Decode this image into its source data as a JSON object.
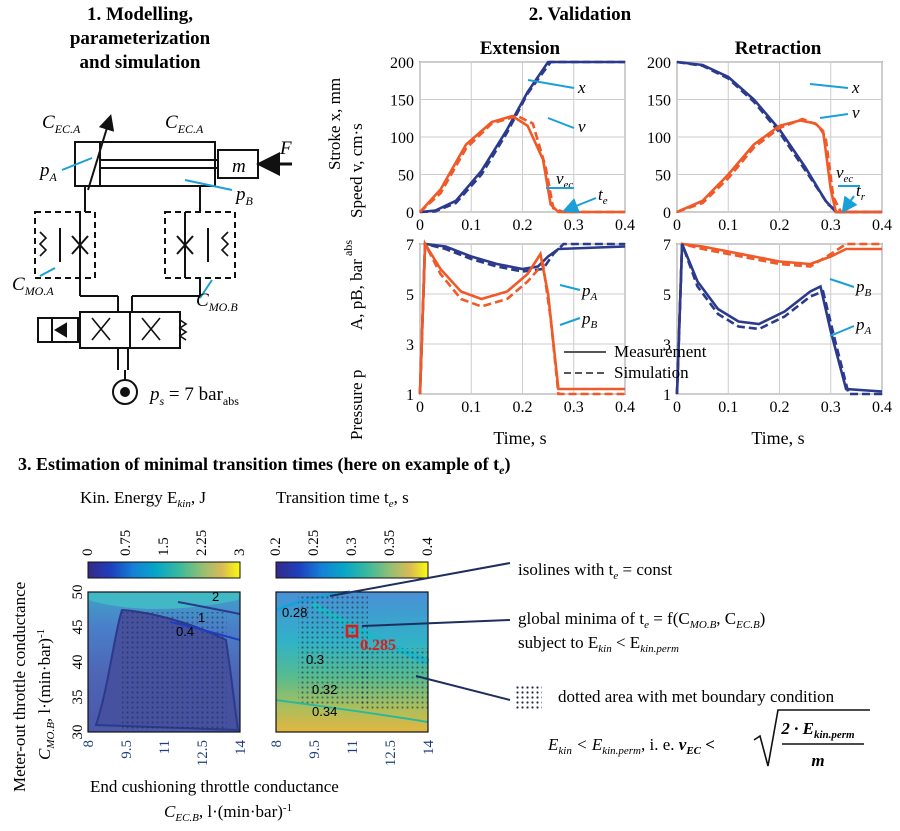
{
  "section1": {
    "title_line1": "1. Modelling,",
    "title_line2": "parameterization",
    "title_line3": "and simulation"
  },
  "section2": {
    "title": "2. Validation"
  },
  "section3": {
    "title": "3. Estimation of minimal transition times (here on example of t",
    "title_sub": "e",
    "title_end": ")"
  },
  "schematic": {
    "c_ec_a_left": "C",
    "c_ec_a_left_sub": "EC.A",
    "c_ec_a_right": "C",
    "c_ec_a_right_sub": "EC.A",
    "p_a": "p",
    "p_a_sub": "A",
    "p_b": "p",
    "p_b_sub": "B",
    "mass": "m",
    "force": "F",
    "c_mo_a": "C",
    "c_mo_a_sub": "MO.A",
    "c_mo_b": "C",
    "c_mo_b_sub": "MO.B",
    "supply": "p",
    "supply_sub": "s",
    "supply_val": " = 7 bar",
    "supply_unit_sub": "abs"
  },
  "validation": {
    "col_extension": "Extension",
    "col_retraction": "Retraction",
    "ylabel_top": "Stroke x, mm",
    "ylabel_top2": "Speed v, cm·s",
    "ylabel_bottom": "Pressure p",
    "ylabel_bottom_rest": "A, pB, bar",
    "ylabel_abs": "abs",
    "xlabel": "Time, s",
    "label_x": "x",
    "label_v": "v",
    "label_vec": "v",
    "label_vec_sub": "ec",
    "label_te": "t",
    "label_te_sub": "e",
    "label_tr": "t",
    "label_tr_sub": "r",
    "label_pa": "p",
    "label_pa_sub": "A",
    "label_pb": "p",
    "label_pb_sub": "B",
    "legend_measurement": "Measurement",
    "legend_simulation": "Simulation"
  },
  "estimation": {
    "kin_title": "Kin. Energy E",
    "kin_sub": "kin",
    "kin_unit": ", J",
    "kin_ticks": [
      "0",
      "0.75",
      "1.5",
      "2.25",
      "3"
    ],
    "tt_title": "Transition time t",
    "tt_sub": "e",
    "tt_unit": ", s",
    "tt_ticks": [
      "0.2",
      "0.25",
      "0.3",
      "0.35",
      "0.4"
    ],
    "x_ticks": [
      "8",
      "9.5",
      "11",
      "12.5",
      "14"
    ],
    "y_ticks": [
      "50",
      "45",
      "40",
      "35",
      "30"
    ],
    "ylabel1": "Meter-out throttle conductance",
    "ylabel2": "C",
    "ylabel2_sub": "MO.B",
    "ylabel2_rest": ", l·(min·bar)",
    "xlabel1": "End cushioning throttle conductance",
    "xlabel2": "C",
    "xlabel2_sub": "EC.B",
    "xlabel2_rest": ", l·(min·bar)",
    "kin_isolines": [
      "2",
      "1",
      "0.4"
    ],
    "tt_isolines": [
      "0.28",
      "0.3",
      "0.32",
      "0.34"
    ],
    "minimum_value": "0.285",
    "annot1_a": "isolines with t",
    "annot1_sub": "e",
    "annot1_b": " = const",
    "annot2_line1_a": "global minima of t",
    "annot2_line1_sub": "e",
    "annot2_line1_b": " = f(C",
    "annot2_line1_s1": "MO.B",
    "annot2_line1_c": ", C",
    "annot2_line1_s2": "EC.B",
    "annot2_line1_d": ")",
    "annot2_line2_a": "subject to E",
    "annot2_line2_s1": "kin",
    "annot2_line2_b": " < E",
    "annot2_line2_s2": "kin.perm",
    "annot3": "dotted area with met boundary condition",
    "formula_a": "E",
    "formula_s1": "kin",
    "formula_b": " < E",
    "formula_s2": "kin.perm",
    "formula_c": ", i. e. ",
    "formula_v": "v",
    "formula_vs": "EC",
    "formula_lt": " <",
    "formula_num": "2 · E",
    "formula_num_sub": "kin.perm",
    "formula_den": "m"
  },
  "colors": {
    "measurement_blue": "#2b3a8c",
    "simulation_orange": "#f05a28",
    "accent_cyan": "#1aa0d8",
    "minimum_red": "#e01a1a"
  }
}
